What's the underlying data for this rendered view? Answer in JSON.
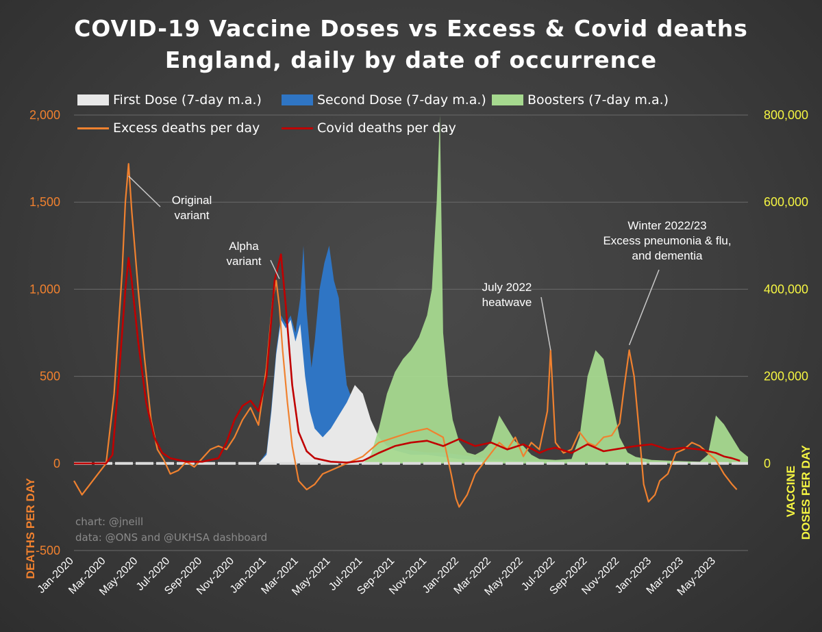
{
  "chart_data": {
    "type": "area",
    "title": "COVID-19 Vaccine Doses vs Excess & Covid deaths",
    "subtitle": "England, daily by date of occurrence",
    "ylabel": "DEATHS PER DAY",
    "y2label_line1": "VACCINE",
    "y2label_line2": "DOSES PER DAY",
    "ylim": [
      -500,
      2000
    ],
    "y2lim": [
      0,
      800000
    ],
    "y_ticks": [
      "-500",
      "0",
      "500",
      "1,000",
      "1,500",
      "2,000"
    ],
    "y2_ticks": [
      "0",
      "200,000",
      "400,000",
      "600,000",
      "800,000"
    ],
    "x_ticks": [
      "Jan-2020",
      "Mar-2020",
      "May-2020",
      "Jul-2020",
      "Sep-2020",
      "Nov-2020",
      "Jan-2021",
      "Mar-2021",
      "May-2021",
      "Jul-2021",
      "Sep-2021",
      "Nov-2021",
      "Jan-2022",
      "Mar-2022",
      "May-2022",
      "Jul-2022",
      "Sep-2022",
      "Nov-2022",
      "Jan-2023",
      "Mar-2023",
      "May-2023"
    ],
    "x_range_months": [
      0,
      42
    ],
    "legend": {
      "first": "First Dose (7-day m.a.)",
      "second": "Second Dose (7-day m.a.)",
      "boosters": "Boosters (7-day m.a.)",
      "excess": "Excess deaths per day",
      "covid": "Covid deaths per day"
    },
    "colors": {
      "first": "#e8e8e8",
      "second": "#2f75c4",
      "boosters": "#a6d98f",
      "excess": "#f0812f",
      "covid": "#c00000",
      "left_axis": "#f0812f",
      "right_axis": "#f5f542",
      "grid": "#6a6a6a"
    },
    "series": [
      {
        "name": "Excess deaths per day",
        "axis": "left",
        "points": [
          [
            0,
            -100
          ],
          [
            0.5,
            -180
          ],
          [
            1,
            -120
          ],
          [
            1.5,
            -60
          ],
          [
            2,
            0
          ],
          [
            2.5,
            400
          ],
          [
            3,
            1100
          ],
          [
            3.2,
            1500
          ],
          [
            3.4,
            1720
          ],
          [
            3.6,
            1450
          ],
          [
            4,
            1000
          ],
          [
            4.4,
            600
          ],
          [
            4.8,
            250
          ],
          [
            5.2,
            80
          ],
          [
            5.6,
            20
          ],
          [
            6,
            -60
          ],
          [
            6.5,
            -40
          ],
          [
            7,
            10
          ],
          [
            7.5,
            -20
          ],
          [
            8,
            30
          ],
          [
            8.5,
            80
          ],
          [
            9,
            100
          ],
          [
            9.5,
            80
          ],
          [
            10,
            150
          ],
          [
            10.5,
            250
          ],
          [
            11,
            320
          ],
          [
            11.5,
            220
          ],
          [
            12,
            550
          ],
          [
            12.4,
            950
          ],
          [
            12.6,
            1050
          ],
          [
            12.8,
            900
          ],
          [
            13,
            650
          ],
          [
            13.3,
            350
          ],
          [
            13.6,
            100
          ],
          [
            14,
            -100
          ],
          [
            14.5,
            -150
          ],
          [
            15,
            -120
          ],
          [
            15.5,
            -60
          ],
          [
            16,
            -40
          ],
          [
            17,
            0
          ],
          [
            18,
            40
          ],
          [
            19,
            120
          ],
          [
            20,
            150
          ],
          [
            21,
            180
          ],
          [
            22,
            200
          ],
          [
            23,
            150
          ],
          [
            23.5,
            -60
          ],
          [
            23.8,
            -200
          ],
          [
            24,
            -250
          ],
          [
            24.5,
            -180
          ],
          [
            25,
            -60
          ],
          [
            25.5,
            0
          ],
          [
            26,
            60
          ],
          [
            26.5,
            120
          ],
          [
            27,
            80
          ],
          [
            27.5,
            150
          ],
          [
            28,
            40
          ],
          [
            28.5,
            120
          ],
          [
            29,
            80
          ],
          [
            29.5,
            300
          ],
          [
            29.7,
            650
          ],
          [
            30,
            120
          ],
          [
            30.5,
            60
          ],
          [
            31,
            80
          ],
          [
            31.5,
            180
          ],
          [
            32,
            120
          ],
          [
            32.5,
            100
          ],
          [
            33,
            150
          ],
          [
            33.5,
            160
          ],
          [
            34,
            230
          ],
          [
            34.3,
            450
          ],
          [
            34.6,
            650
          ],
          [
            34.9,
            500
          ],
          [
            35.2,
            200
          ],
          [
            35.5,
            -120
          ],
          [
            35.8,
            -220
          ],
          [
            36.2,
            -180
          ],
          [
            36.5,
            -100
          ],
          [
            37,
            -60
          ],
          [
            37.5,
            60
          ],
          [
            38,
            80
          ],
          [
            38.5,
            120
          ],
          [
            39,
            100
          ],
          [
            39.5,
            60
          ],
          [
            40,
            20
          ],
          [
            40.5,
            -60
          ],
          [
            41,
            -120
          ],
          [
            41.3,
            -150
          ]
        ]
      },
      {
        "name": "Covid deaths per day",
        "axis": "left",
        "points": [
          [
            0,
            0
          ],
          [
            1,
            0
          ],
          [
            2,
            0
          ],
          [
            2.4,
            50
          ],
          [
            2.8,
            500
          ],
          [
            3.2,
            1000
          ],
          [
            3.4,
            1180
          ],
          [
            3.6,
            1050
          ],
          [
            4,
            700
          ],
          [
            4.5,
            350
          ],
          [
            5,
            150
          ],
          [
            5.5,
            60
          ],
          [
            6,
            30
          ],
          [
            7,
            10
          ],
          [
            8,
            10
          ],
          [
            9,
            30
          ],
          [
            9.5,
            120
          ],
          [
            10,
            250
          ],
          [
            10.5,
            330
          ],
          [
            11,
            360
          ],
          [
            11.5,
            300
          ],
          [
            12,
            500
          ],
          [
            12.5,
            1050
          ],
          [
            12.9,
            1200
          ],
          [
            13.2,
            900
          ],
          [
            13.6,
            450
          ],
          [
            14,
            180
          ],
          [
            14.5,
            70
          ],
          [
            15,
            30
          ],
          [
            16,
            10
          ],
          [
            17,
            5
          ],
          [
            18,
            15
          ],
          [
            19,
            60
          ],
          [
            20,
            100
          ],
          [
            21,
            120
          ],
          [
            22,
            130
          ],
          [
            23,
            100
          ],
          [
            24,
            140
          ],
          [
            25,
            100
          ],
          [
            26,
            120
          ],
          [
            27,
            80
          ],
          [
            28,
            110
          ],
          [
            29,
            60
          ],
          [
            29.5,
            80
          ],
          [
            30,
            90
          ],
          [
            31,
            60
          ],
          [
            32,
            110
          ],
          [
            33,
            70
          ],
          [
            34,
            85
          ],
          [
            35,
            100
          ],
          [
            36,
            110
          ],
          [
            37,
            80
          ],
          [
            38,
            90
          ],
          [
            39,
            80
          ],
          [
            40,
            60
          ],
          [
            40.5,
            40
          ],
          [
            41,
            30
          ],
          [
            41.5,
            15
          ]
        ]
      },
      {
        "name": "First Dose (7-day m.a.)",
        "axis": "right",
        "points": [
          [
            11.5,
            0
          ],
          [
            12,
            20000
          ],
          [
            12.3,
            120000
          ],
          [
            12.6,
            250000
          ],
          [
            12.9,
            330000
          ],
          [
            13.2,
            310000
          ],
          [
            13.5,
            330000
          ],
          [
            13.8,
            280000
          ],
          [
            14.1,
            320000
          ],
          [
            14.4,
            200000
          ],
          [
            14.7,
            120000
          ],
          [
            15,
            80000
          ],
          [
            15.5,
            60000
          ],
          [
            16,
            80000
          ],
          [
            16.5,
            110000
          ],
          [
            17,
            140000
          ],
          [
            17.5,
            180000
          ],
          [
            18,
            160000
          ],
          [
            18.5,
            100000
          ],
          [
            19,
            60000
          ],
          [
            19.5,
            40000
          ],
          [
            20,
            30000
          ],
          [
            21,
            20000
          ],
          [
            22,
            20000
          ],
          [
            23,
            15000
          ],
          [
            24,
            10000
          ],
          [
            25,
            8000
          ],
          [
            26,
            6000
          ],
          [
            28,
            4000
          ],
          [
            32,
            3000
          ],
          [
            36,
            2000
          ],
          [
            40,
            1000
          ],
          [
            42,
            0
          ]
        ]
      },
      {
        "name": "Second Dose (7-day m.a.)",
        "axis": "right",
        "points": [
          [
            11.5,
            0
          ],
          [
            12,
            25000
          ],
          [
            12.3,
            130000
          ],
          [
            12.6,
            260000
          ],
          [
            12.9,
            340000
          ],
          [
            13.2,
            320000
          ],
          [
            13.5,
            340000
          ],
          [
            13.8,
            300000
          ],
          [
            14.1,
            380000
          ],
          [
            14.3,
            500000
          ],
          [
            14.5,
            350000
          ],
          [
            14.8,
            220000
          ],
          [
            15,
            280000
          ],
          [
            15.3,
            400000
          ],
          [
            15.6,
            460000
          ],
          [
            15.9,
            500000
          ],
          [
            16.2,
            420000
          ],
          [
            16.5,
            380000
          ],
          [
            16.8,
            250000
          ],
          [
            17,
            180000
          ],
          [
            17.3,
            150000
          ],
          [
            17.6,
            160000
          ],
          [
            17.9,
            130000
          ],
          [
            18.2,
            120000
          ],
          [
            18.5,
            60000
          ],
          [
            19,
            45000
          ],
          [
            20,
            38000
          ],
          [
            21,
            30000
          ],
          [
            22,
            25000
          ],
          [
            23,
            25000
          ],
          [
            24,
            20000
          ],
          [
            25,
            15000
          ],
          [
            26,
            10000
          ],
          [
            28,
            6000
          ],
          [
            32,
            4000
          ],
          [
            36,
            3000
          ],
          [
            40,
            2000
          ],
          [
            42,
            0
          ]
        ]
      },
      {
        "name": "Boosters (7-day m.a.)",
        "axis": "right",
        "points": [
          [
            18,
            0
          ],
          [
            18.5,
            20000
          ],
          [
            19,
            80000
          ],
          [
            19.5,
            160000
          ],
          [
            20,
            210000
          ],
          [
            20.5,
            240000
          ],
          [
            21,
            260000
          ],
          [
            21.5,
            290000
          ],
          [
            22,
            340000
          ],
          [
            22.3,
            400000
          ],
          [
            22.6,
            600000
          ],
          [
            22.8,
            800000
          ],
          [
            23,
            300000
          ],
          [
            23.3,
            180000
          ],
          [
            23.6,
            100000
          ],
          [
            24,
            50000
          ],
          [
            24.5,
            25000
          ],
          [
            25,
            20000
          ],
          [
            25.5,
            30000
          ],
          [
            26,
            50000
          ],
          [
            26.5,
            110000
          ],
          [
            27,
            80000
          ],
          [
            27.5,
            50000
          ],
          [
            28,
            40000
          ],
          [
            28.5,
            20000
          ],
          [
            29,
            10000
          ],
          [
            30,
            8000
          ],
          [
            31,
            10000
          ],
          [
            31.5,
            60000
          ],
          [
            32,
            200000
          ],
          [
            32.5,
            260000
          ],
          [
            33,
            240000
          ],
          [
            33.5,
            150000
          ],
          [
            34,
            60000
          ],
          [
            34.5,
            25000
          ],
          [
            35,
            15000
          ],
          [
            36,
            8000
          ],
          [
            38,
            5000
          ],
          [
            39,
            4000
          ],
          [
            39.5,
            20000
          ],
          [
            40,
            110000
          ],
          [
            40.5,
            90000
          ],
          [
            41,
            60000
          ],
          [
            41.5,
            30000
          ],
          [
            42,
            15000
          ]
        ]
      }
    ],
    "annotations": [
      {
        "text": [
          "Original",
          "variant"
        ],
        "x": 3.4,
        "y": 1650
      },
      {
        "text": [
          "Alpha",
          "variant"
        ],
        "x": 12.8,
        "y": 1060
      },
      {
        "text": [
          "July 2022",
          "heatwave"
        ],
        "x": 29.7,
        "y": 650
      },
      {
        "text": [
          "Winter 2022/23",
          "Excess  pneumonia & flu,",
          "and dementia"
        ],
        "x": 34.6,
        "y": 680
      }
    ],
    "credits": [
      "chart: @jneill",
      "data: @ONS and @UKHSA dashboard"
    ]
  }
}
